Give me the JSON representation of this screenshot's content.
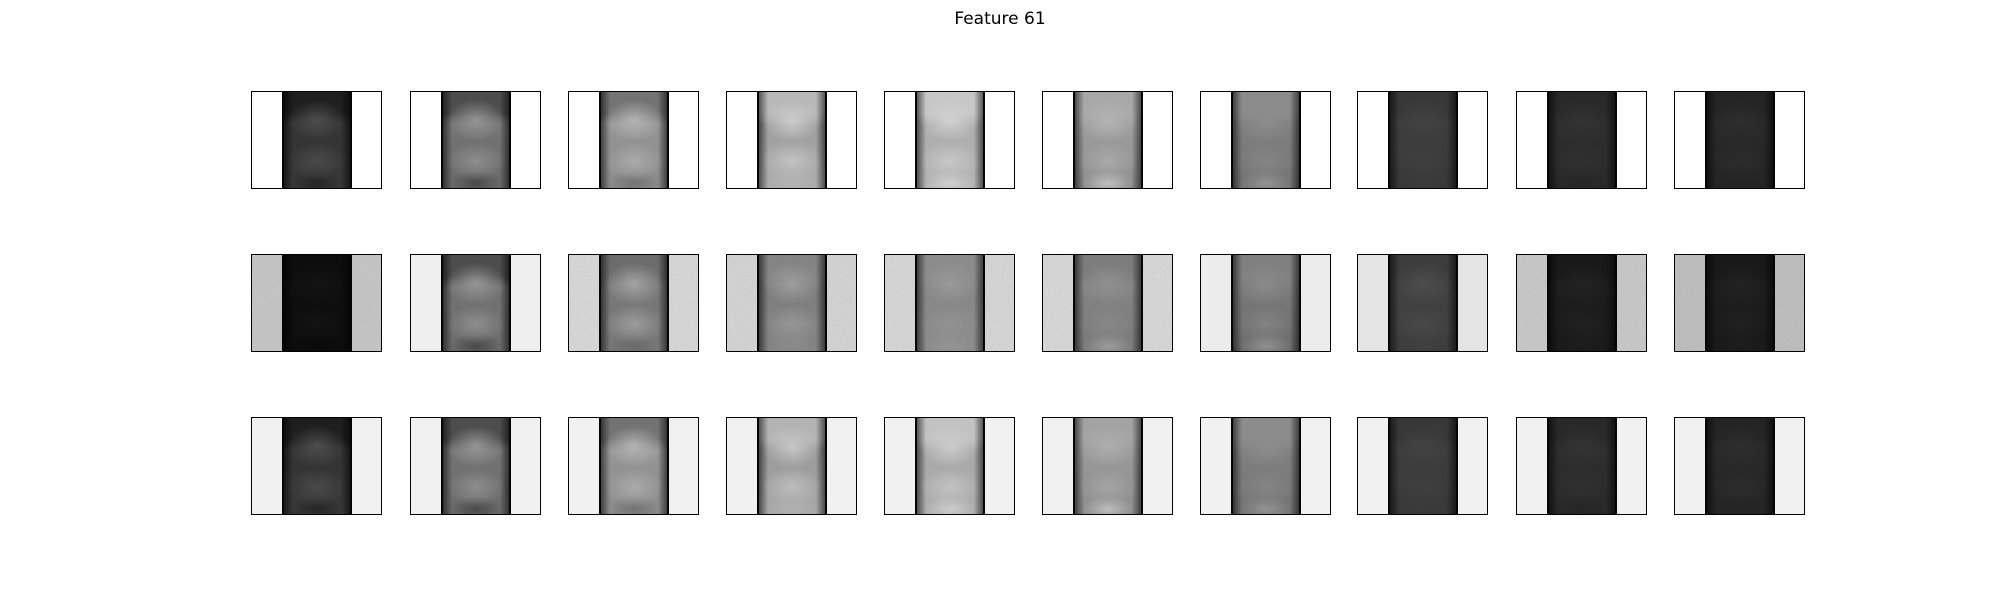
{
  "figure": {
    "title": "Feature 61"
  },
  "grid": {
    "rows": 3,
    "cols": 10,
    "panels": [
      [
        {
          "bg": "#ffffff",
          "top": 0.12,
          "mid": 0.2,
          "low": 0.22,
          "hi1": 0.3,
          "hi2": 0.0,
          "noise": false
        },
        {
          "bg": "#ffffff",
          "top": 0.3,
          "mid": 0.45,
          "low": 0.42,
          "hi1": 0.58,
          "hi2": 0.0,
          "noise": false
        },
        {
          "bg": "#ffffff",
          "top": 0.45,
          "mid": 0.58,
          "low": 0.55,
          "hi1": 0.7,
          "hi2": 0.1,
          "noise": false
        },
        {
          "bg": "#ffffff",
          "top": 0.72,
          "mid": 0.62,
          "low": 0.68,
          "hi1": 0.8,
          "hi2": 0.3,
          "noise": false
        },
        {
          "bg": "#ffffff",
          "top": 0.78,
          "mid": 0.68,
          "low": 0.7,
          "hi1": 0.82,
          "hi2": 0.4,
          "noise": false
        },
        {
          "bg": "#ffffff",
          "top": 0.66,
          "mid": 0.62,
          "low": 0.55,
          "hi1": 0.7,
          "hi2": 0.4,
          "noise": false
        },
        {
          "bg": "#ffffff",
          "top": 0.55,
          "mid": 0.5,
          "low": 0.45,
          "hi1": 0.55,
          "hi2": 0.3,
          "noise": false
        },
        {
          "bg": "#ffffff",
          "top": 0.22,
          "mid": 0.24,
          "low": 0.22,
          "hi1": 0.26,
          "hi2": 0.1,
          "noise": false
        },
        {
          "bg": "#ffffff",
          "top": 0.16,
          "mid": 0.18,
          "low": 0.16,
          "hi1": 0.2,
          "hi2": 0.05,
          "noise": false
        },
        {
          "bg": "#ffffff",
          "top": 0.14,
          "mid": 0.16,
          "low": 0.14,
          "hi1": 0.18,
          "hi2": 0.05,
          "noise": false
        }
      ],
      [
        {
          "bg": "#cfcfcf",
          "top": 0.05,
          "mid": 0.06,
          "low": 0.05,
          "hi1": 0.08,
          "hi2": 0.0,
          "noise": true
        },
        {
          "bg": "#efefef",
          "top": 0.3,
          "mid": 0.45,
          "low": 0.42,
          "hi1": 0.58,
          "hi2": 0.0,
          "noise": false
        },
        {
          "bg": "#e2e2e2",
          "top": 0.45,
          "mid": 0.5,
          "low": 0.5,
          "hi1": 0.68,
          "hi2": 0.1,
          "noise": true
        },
        {
          "bg": "#dedede",
          "top": 0.55,
          "mid": 0.52,
          "low": 0.55,
          "hi1": 0.66,
          "hi2": 0.25,
          "noise": true
        },
        {
          "bg": "#e0e0e0",
          "top": 0.58,
          "mid": 0.56,
          "low": 0.58,
          "hi1": 0.64,
          "hi2": 0.3,
          "noise": true
        },
        {
          "bg": "#e2e2e2",
          "top": 0.52,
          "mid": 0.55,
          "low": 0.5,
          "hi1": 0.6,
          "hi2": 0.35,
          "noise": true
        },
        {
          "bg": "#ececec",
          "top": 0.5,
          "mid": 0.48,
          "low": 0.42,
          "hi1": 0.54,
          "hi2": 0.3,
          "noise": false
        },
        {
          "bg": "#e4e4e4",
          "top": 0.24,
          "mid": 0.26,
          "low": 0.24,
          "hi1": 0.3,
          "hi2": 0.1,
          "noise": false
        },
        {
          "bg": "#d2d2d2",
          "top": 0.1,
          "mid": 0.12,
          "low": 0.1,
          "hi1": 0.14,
          "hi2": 0.05,
          "noise": true
        },
        {
          "bg": "#c8c8c8",
          "top": 0.1,
          "mid": 0.12,
          "low": 0.1,
          "hi1": 0.14,
          "hi2": 0.05,
          "noise": true
        }
      ],
      [
        {
          "bg": "#f1f1f1",
          "top": 0.12,
          "mid": 0.2,
          "low": 0.22,
          "hi1": 0.3,
          "hi2": 0.0,
          "noise": false
        },
        {
          "bg": "#f1f1f1",
          "top": 0.3,
          "mid": 0.45,
          "low": 0.42,
          "hi1": 0.58,
          "hi2": 0.0,
          "noise": false
        },
        {
          "bg": "#f1f1f1",
          "top": 0.45,
          "mid": 0.58,
          "low": 0.55,
          "hi1": 0.7,
          "hi2": 0.1,
          "noise": false
        },
        {
          "bg": "#f1f1f1",
          "top": 0.7,
          "mid": 0.6,
          "low": 0.66,
          "hi1": 0.78,
          "hi2": 0.3,
          "noise": false
        },
        {
          "bg": "#f1f1f1",
          "top": 0.76,
          "mid": 0.66,
          "low": 0.68,
          "hi1": 0.8,
          "hi2": 0.4,
          "noise": false
        },
        {
          "bg": "#f1f1f1",
          "top": 0.64,
          "mid": 0.6,
          "low": 0.55,
          "hi1": 0.68,
          "hi2": 0.4,
          "noise": false
        },
        {
          "bg": "#f1f1f1",
          "top": 0.55,
          "mid": 0.5,
          "low": 0.45,
          "hi1": 0.55,
          "hi2": 0.3,
          "noise": false
        },
        {
          "bg": "#f1f1f1",
          "top": 0.22,
          "mid": 0.24,
          "low": 0.22,
          "hi1": 0.26,
          "hi2": 0.1,
          "noise": false
        },
        {
          "bg": "#f1f1f1",
          "top": 0.16,
          "mid": 0.18,
          "low": 0.16,
          "hi1": 0.2,
          "hi2": 0.05,
          "noise": false
        },
        {
          "bg": "#f1f1f1",
          "top": 0.14,
          "mid": 0.16,
          "low": 0.14,
          "hi1": 0.18,
          "hi2": 0.05,
          "noise": false
        }
      ]
    ]
  }
}
